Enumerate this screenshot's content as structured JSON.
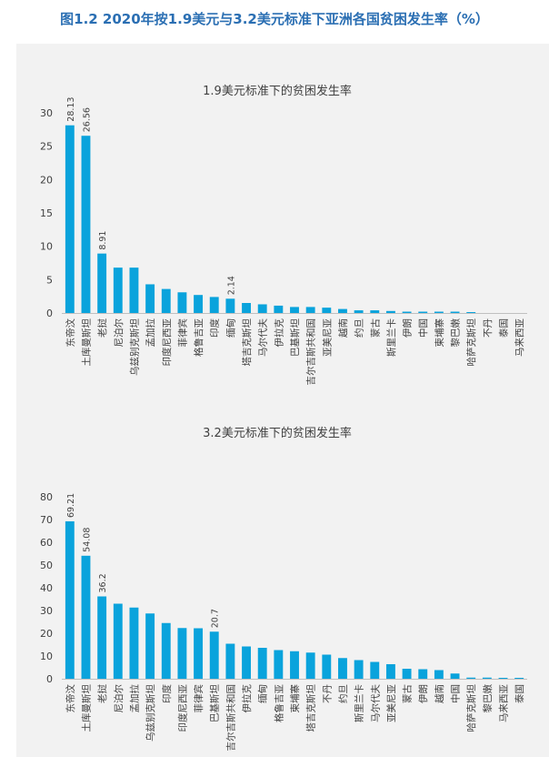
{
  "figure_title": "图1.2 2020年按1.9美元与3.2美元标准下亚洲各国贫困发生率（%）",
  "colors": {
    "bar": "#0aa3dc",
    "axis": "#bfbfbf",
    "text": "#404040",
    "title": "#2b6fb3"
  },
  "chart_data": [
    {
      "type": "bar",
      "title": "1.9美元标准下的贫困发生率",
      "xlabel": "",
      "ylabel": "",
      "ylim": [
        0,
        30
      ],
      "yticks": [
        0,
        5,
        10,
        15,
        20,
        25,
        30
      ],
      "categories": [
        "东帝汶",
        "土库曼斯坦",
        "老挝",
        "尼泊尔",
        "乌兹别克斯坦",
        "孟加拉",
        "印度尼西亚",
        "菲律宾",
        "格鲁吉亚",
        "印度",
        "缅甸",
        "塔吉克斯坦",
        "马尔代夫",
        "伊拉克",
        "巴基斯坦",
        "吉尔吉斯共和国",
        "亚美尼亚",
        "越南",
        "约旦",
        "蒙古",
        "斯里兰卡",
        "伊朗",
        "中国",
        "柬埔寨",
        "黎巴嫩",
        "哈萨克斯坦",
        "不丹",
        "泰国",
        "马来西亚"
      ],
      "values": [
        28.13,
        26.56,
        8.91,
        6.8,
        6.8,
        4.3,
        3.6,
        3.1,
        2.7,
        2.4,
        2.14,
        1.5,
        1.3,
        1.1,
        0.9,
        0.9,
        0.8,
        0.6,
        0.4,
        0.4,
        0.3,
        0.2,
        0.2,
        0.2,
        0.2,
        0.1,
        0.0,
        0.0,
        0.0
      ],
      "data_labels": [
        "28.13",
        "26.56",
        "8.91",
        "",
        "",
        "",
        "",
        "",
        "",
        "",
        "2.14",
        "",
        "",
        "",
        "",
        "",
        "",
        "",
        "",
        "",
        "",
        "",
        "",
        "",
        "",
        "",
        "",
        "",
        ""
      ]
    },
    {
      "type": "bar",
      "title": "3.2美元标准下的贫困发生率",
      "xlabel": "",
      "ylabel": "",
      "ylim": [
        0,
        80
      ],
      "yticks": [
        0,
        10,
        20,
        30,
        40,
        50,
        60,
        70,
        80
      ],
      "categories": [
        "东帝汶",
        "土库曼斯坦",
        "老挝",
        "尼泊尔",
        "孟加拉",
        "乌兹别克斯坦",
        "印度",
        "印度尼西亚",
        "菲律宾",
        "巴基斯坦",
        "吉尔吉斯共和国",
        "伊拉克",
        "缅甸",
        "格鲁吉亚",
        "柬埔寨",
        "塔吉克斯坦",
        "不丹",
        "约旦",
        "斯里兰卡",
        "马尔代夫",
        "亚美尼亚",
        "蒙古",
        "伊朗",
        "越南",
        "中国",
        "哈萨克斯坦",
        "黎巴嫩",
        "马来西亚",
        "泰国"
      ],
      "values": [
        69.21,
        54.08,
        36.2,
        33.0,
        31.3,
        28.7,
        24.5,
        22.3,
        22.2,
        20.7,
        15.4,
        14.2,
        13.6,
        12.6,
        12.1,
        11.5,
        10.6,
        9.1,
        8.2,
        7.4,
        6.4,
        4.4,
        4.2,
        3.8,
        2.3,
        0.5,
        0.5,
        0.4,
        0.4
      ],
      "data_labels": [
        "69.21",
        "54.08",
        "36.2",
        "",
        "",
        "",
        "",
        "",
        "",
        "20.7",
        "",
        "",
        "",
        "",
        "",
        "",
        "",
        "",
        "",
        "",
        "",
        "",
        "",
        "",
        "",
        "",
        "",
        "",
        ""
      ]
    }
  ]
}
